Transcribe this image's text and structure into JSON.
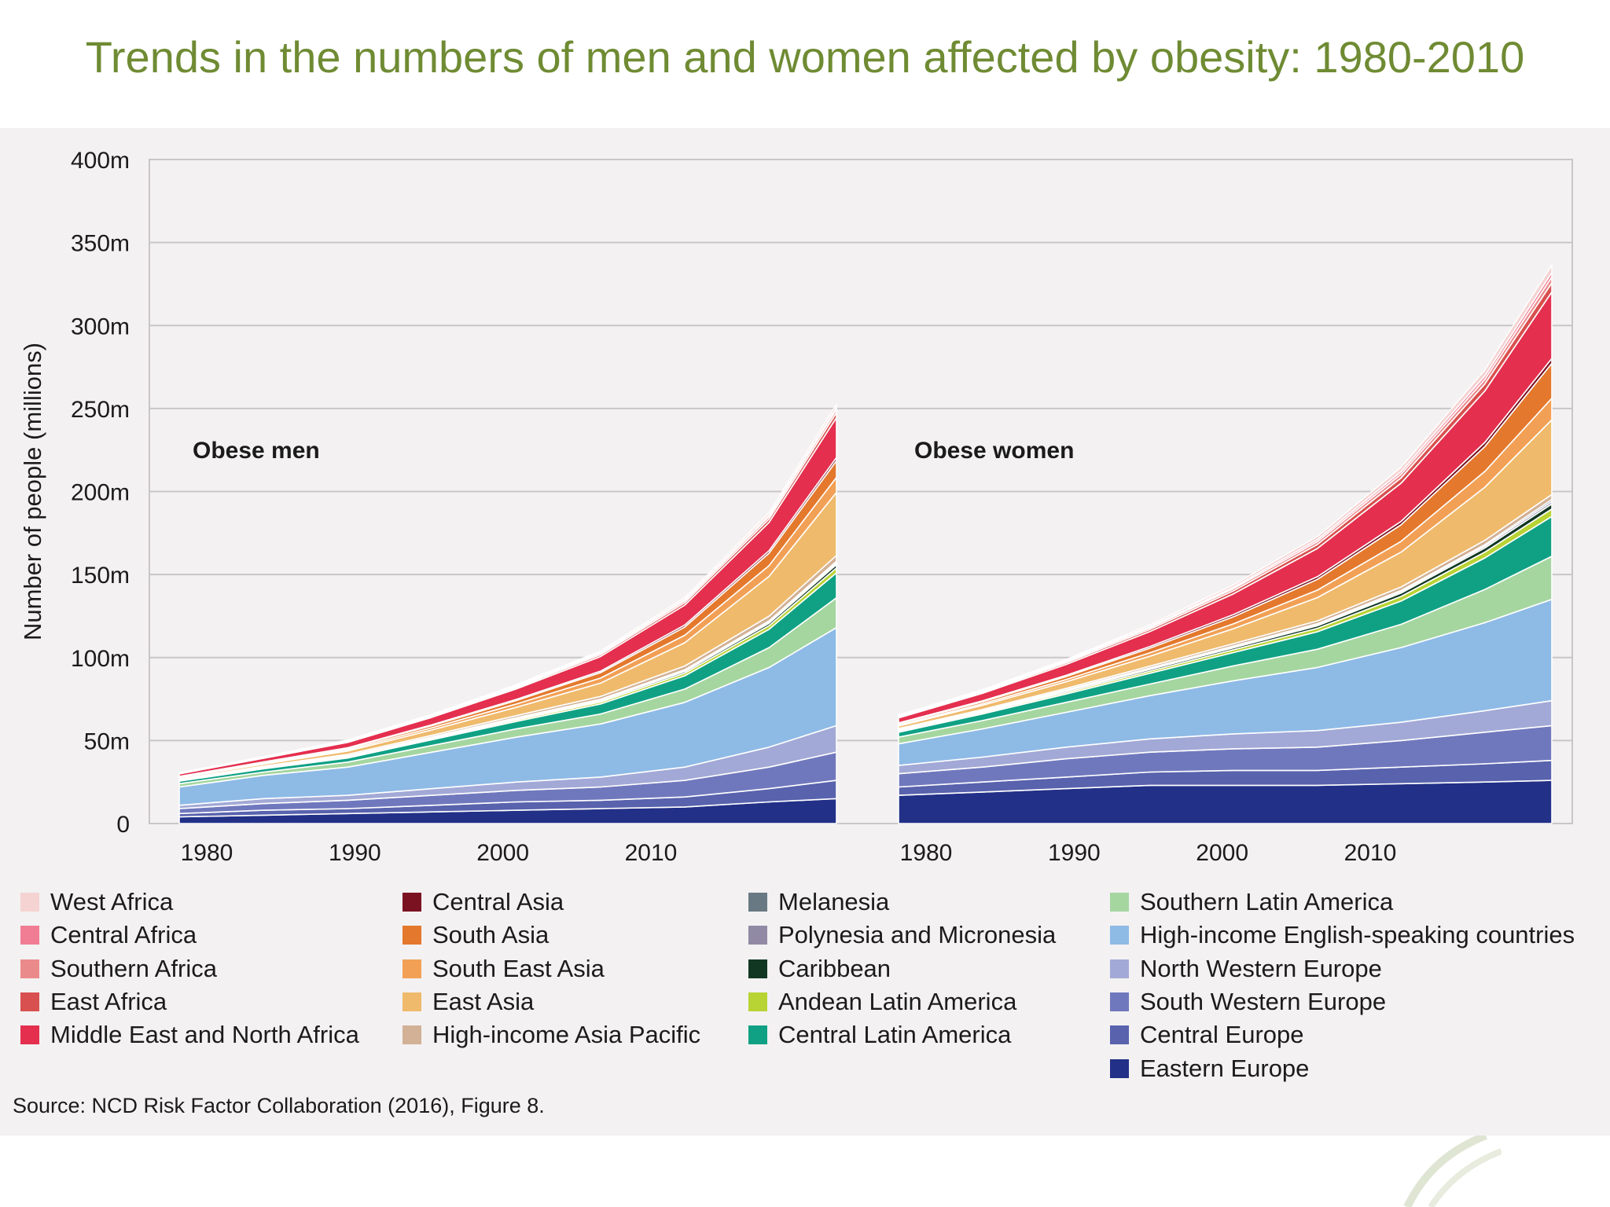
{
  "title": "Trends in the numbers of men and women affected by obesity: 1980-2010",
  "source": "Source: NCD Risk Factor Collaboration (2016), Figure 8.",
  "colors": {
    "title": "#6f8b33",
    "panel_background": "#f3f1f2",
    "gridline": "#c9c6c8"
  },
  "chart_data": {
    "type": "area",
    "stacked": true,
    "ylabel": "Number of people (millions)",
    "y_ticks": [
      "0",
      "50m",
      "100m",
      "150m",
      "200m",
      "250m",
      "300m",
      "350m",
      "400m"
    ],
    "ylim": [
      0,
      400
    ],
    "x_ticks": [
      "1980",
      "1990",
      "2000",
      "2010"
    ],
    "xlim": [
      1975,
      2014
    ],
    "grid": true,
    "legend_position": "bottom",
    "stack_order": [
      "Eastern Europe",
      "Central Europe",
      "South Western Europe",
      "North Western Europe",
      "High-income English-speaking countries",
      "Southern Latin America",
      "Central Latin America",
      "Andean Latin America",
      "Caribbean",
      "Polynesia and Micronesia",
      "Melanesia",
      "High-income Asia Pacific",
      "East Asia",
      "South East Asia",
      "South Asia",
      "Central Asia",
      "Middle East and North Africa",
      "East Africa",
      "Southern Africa",
      "Central Africa",
      "West Africa"
    ],
    "legend_columns": [
      [
        "West Africa",
        "Central Africa",
        "Southern Africa",
        "East Africa",
        "Middle East and North Africa"
      ],
      [
        "Central Asia",
        "South Asia",
        "South East Asia",
        "East Asia",
        "High-income Asia Pacific"
      ],
      [
        "Melanesia",
        "Polynesia and Micronesia",
        "Caribbean",
        "Andean Latin America",
        "Central Latin America"
      ],
      [
        "Southern Latin America",
        "High-income English-speaking countries",
        "North Western Europe",
        "South Western Europe",
        "Central Europe",
        "Eastern Europe"
      ]
    ],
    "series_colors": {
      "Eastern Europe": "#223087",
      "Central Europe": "#5862ad",
      "South Western Europe": "#7078bd",
      "North Western Europe": "#a2a9d6",
      "High-income English-speaking countries": "#8ebae6",
      "Southern Latin America": "#a5d6a0",
      "Central Latin America": "#10a184",
      "Andean Latin America": "#b8d334",
      "Caribbean": "#113723",
      "Polynesia and Micronesia": "#918aa5",
      "Melanesia": "#687983",
      "High-income Asia Pacific": "#d2b196",
      "East Asia": "#efba6c",
      "South East Asia": "#f2a055",
      "South Asia": "#e4782c",
      "Central Asia": "#7b1222",
      "Middle East and North Africa": "#e42f4e",
      "East Africa": "#d8504f",
      "Southern Africa": "#eb8a8b",
      "Central Africa": "#f17d94",
      "West Africa": "#f5d3d2"
    },
    "panels": [
      {
        "label": "Obese men",
        "x": [
          1975,
          1980,
          1985,
          1990,
          1995,
          2000,
          2005,
          2010,
          2014
        ],
        "series": {
          "Eastern Europe": [
            4,
            5,
            6,
            7,
            8,
            9,
            10,
            13,
            15
          ],
          "Central Europe": [
            2,
            3,
            3,
            4,
            5,
            5,
            6,
            8,
            11
          ],
          "South Western Europe": [
            3,
            4,
            5,
            6,
            7,
            8,
            10,
            13,
            17
          ],
          "North Western Europe": [
            2,
            3,
            3,
            4,
            5,
            6,
            8,
            12,
            16
          ],
          "High-income English-speaking countries": [
            11,
            14,
            17,
            22,
            27,
            32,
            39,
            48,
            59
          ],
          "Southern Latin America": [
            2,
            2,
            3,
            4,
            5,
            6,
            8,
            12,
            18
          ],
          "Central Latin America": [
            1.5,
            2,
            2.5,
            3.5,
            4.5,
            6,
            8,
            11,
            15
          ],
          "Andean Latin America": [
            0.3,
            0.4,
            0.5,
            0.7,
            0.9,
            1.2,
            1.6,
            2.2,
            3
          ],
          "Caribbean": [
            0.2,
            0.3,
            0.4,
            0.5,
            0.6,
            0.8,
            1,
            1.4,
            2
          ],
          "Polynesia and Micronesia": [
            0.2,
            0.2,
            0.3,
            0.3,
            0.4,
            0.5,
            0.6,
            0.8,
            1
          ],
          "Melanesia": [
            0.1,
            0.1,
            0.2,
            0.2,
            0.3,
            0.4,
            0.5,
            0.7,
            1
          ],
          "High-income Asia Pacific": [
            0.5,
            0.6,
            0.8,
            1,
            1.3,
            1.7,
            2.2,
            2.8,
            3.5
          ],
          "East Asia": [
            0.8,
            1.2,
            2,
            3.2,
            5,
            8,
            14,
            24,
            38
          ],
          "South East Asia": [
            0.3,
            0.5,
            0.8,
            1.3,
            2,
            3,
            4.5,
            6.5,
            9
          ],
          "South Asia": [
            0.3,
            0.5,
            0.8,
            1.3,
            2.1,
            3.3,
            5,
            7.5,
            10
          ],
          "Central Asia": [
            0.2,
            0.3,
            0.4,
            0.5,
            0.7,
            0.9,
            1.2,
            1.5,
            2
          ],
          "Middle East and North Africa": [
            1.5,
            2.2,
            3.2,
            4.5,
            6.3,
            8.8,
            12,
            17,
            24
          ],
          "East Africa": [
            0.2,
            0.3,
            0.4,
            0.6,
            0.8,
            1.1,
            1.5,
            2.1,
            3
          ],
          "Southern Africa": [
            0.2,
            0.3,
            0.4,
            0.5,
            0.7,
            0.9,
            1.2,
            1.5,
            2
          ],
          "Central Africa": [
            0.1,
            0.1,
            0.2,
            0.2,
            0.3,
            0.4,
            0.5,
            0.7,
            1
          ],
          "West Africa": [
            0.2,
            0.3,
            0.4,
            0.5,
            0.7,
            0.9,
            1.2,
            1.6,
            2
          ]
        }
      },
      {
        "label": "Obese women",
        "x": [
          1975,
          1980,
          1985,
          1990,
          1995,
          2000,
          2005,
          2010,
          2014
        ],
        "series": {
          "Eastern Europe": [
            17,
            19,
            21,
            23,
            23,
            23,
            24,
            25,
            26
          ],
          "Central Europe": [
            5,
            6,
            7,
            8,
            9,
            9,
            10,
            11,
            12
          ],
          "South Western Europe": [
            8,
            9,
            11,
            12,
            13,
            14,
            16,
            19,
            21
          ],
          "North Western Europe": [
            5,
            6,
            7,
            8,
            9,
            10,
            11,
            13,
            15
          ],
          "High-income English-speaking countries": [
            13,
            17,
            21,
            26,
            32,
            38,
            45,
            53,
            61
          ],
          "Southern Latin America": [
            4,
            5,
            6,
            7,
            9,
            11,
            14,
            20,
            26
          ],
          "Central Latin America": [
            3,
            4,
            5,
            6.5,
            8,
            10.5,
            14,
            19,
            24
          ],
          "Andean Latin America": [
            0.6,
            0.8,
            1,
            1.3,
            1.7,
            2.1,
            2.8,
            3.5,
            4.5
          ],
          "Caribbean": [
            0.5,
            0.6,
            0.8,
            1,
            1.2,
            1.5,
            2,
            2.5,
            3
          ],
          "Polynesia and Micronesia": [
            0.3,
            0.3,
            0.4,
            0.5,
            0.6,
            0.7,
            0.9,
            1.1,
            1.5
          ],
          "Melanesia": [
            0.2,
            0.3,
            0.3,
            0.4,
            0.5,
            0.6,
            0.7,
            0.9,
            1.2
          ],
          "High-income Asia Pacific": [
            0.6,
            0.7,
            0.9,
            1.1,
            1.4,
            1.7,
            2.1,
            2.6,
            3
          ],
          "East Asia": [
            1.5,
            2.5,
            4,
            6,
            9,
            14,
            21,
            32,
            45
          ],
          "South East Asia": [
            0.6,
            0.9,
            1.3,
            2,
            3,
            4.5,
            6.5,
            9.5,
            13
          ],
          "South Asia": [
            0.8,
            1.2,
            1.8,
            2.8,
            4.2,
            6.5,
            10,
            15,
            21
          ],
          "Central Asia": [
            0.5,
            0.6,
            0.8,
            1,
            1.3,
            1.6,
            2,
            2.5,
            3
          ],
          "Middle East and North Africa": [
            3,
            4.5,
            6.5,
            9,
            12.5,
            17,
            23,
            31,
            40
          ],
          "East Africa": [
            0.5,
            0.7,
            1,
            1.3,
            1.8,
            2.4,
            3.2,
            4.2,
            5.5
          ],
          "Southern Africa": [
            0.5,
            0.6,
            0.8,
            1,
            1.3,
            1.7,
            2.2,
            2.8,
            3.5
          ],
          "Central Africa": [
            0.3,
            0.4,
            0.5,
            0.7,
            0.9,
            1.2,
            1.6,
            2.1,
            2.7
          ],
          "West Africa": [
            0.4,
            0.5,
            0.7,
            1,
            1.4,
            1.9,
            2.6,
            3.5,
            4.5
          ]
        }
      }
    ]
  }
}
